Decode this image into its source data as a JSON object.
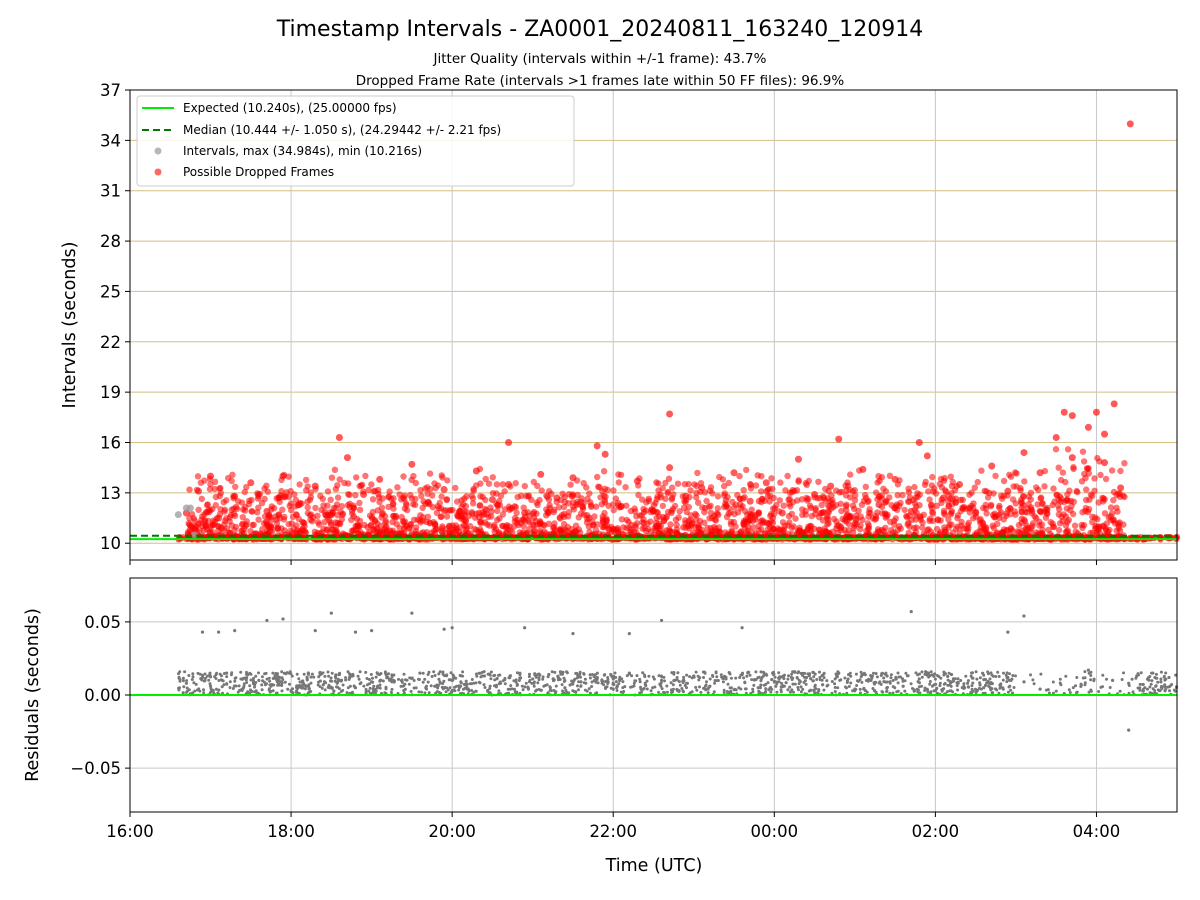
{
  "chart_data": {
    "type": "scatter",
    "title": "Timestamp Intervals - ZA0001_20240811_163240_120914",
    "subtitle_lines": [
      "Jitter Quality (intervals within +/-1 frame): 43.7%",
      "Dropped Frame Rate (intervals >1 frames late within 50 FF files): 96.9%"
    ],
    "xlabel": "Time (UTC)",
    "x_unit": "hours since 16:00 UTC (axis tick labels show clock time)",
    "x_ticks": [
      "16:00",
      "18:00",
      "20:00",
      "22:00",
      "00:00",
      "02:00",
      "04:00"
    ],
    "xlim": [
      16.0,
      29.0
    ],
    "grid": true,
    "legend_position": "top-left",
    "colors": {
      "expected": "#00ee00",
      "median": "#007700",
      "intervals": "#999999",
      "dropped": "#ff0000",
      "residuals": "#777777",
      "upper_grid": "#d4be82",
      "grid": "#c8c8c8"
    },
    "panels": [
      {
        "id": "intervals",
        "ylabel": "Intervals (seconds)",
        "ylim": [
          9.0,
          37.0
        ],
        "y_ticks": [
          "10",
          "13",
          "16",
          "19",
          "22",
          "25",
          "28",
          "31",
          "34",
          "37"
        ],
        "legend": [
          {
            "name": "Expected (10.240s), (25.00000 fps)",
            "style": "line"
          },
          {
            "name": "Median (10.444 +/- 1.050 s), (24.29442 +/- 2.21 fps)",
            "style": "dashed"
          },
          {
            "name": "Intervals, max (34.984s), min (10.216s)",
            "style": "gray-dot"
          },
          {
            "name": "Possible Dropped Frames",
            "style": "red-dot"
          }
        ],
        "expected_interval": 10.24,
        "median_interval": 10.444,
        "max_interval": 34.984,
        "min_interval": 10.216,
        "series": [
          {
            "name": "Possible Dropped Frames",
            "x": [
              16.7,
              16.85,
              17.0,
              17.1,
              17.3,
              17.5,
              17.7,
              17.9,
              18.1,
              18.3,
              18.5,
              18.7,
              18.9,
              19.1,
              19.3,
              19.5,
              19.7,
              19.9,
              20.1,
              20.3,
              20.5,
              20.7,
              20.9,
              21.1,
              21.3,
              21.5,
              21.7,
              21.9,
              22.1,
              22.3,
              22.5,
              22.7,
              22.9,
              23.1,
              23.3,
              23.5,
              23.7,
              23.9,
              24.1,
              24.3,
              24.5,
              24.7,
              24.9,
              25.1,
              25.3,
              25.5,
              25.7,
              25.9,
              26.1,
              26.3,
              26.5,
              26.7,
              26.9,
              27.1,
              27.3,
              27.5,
              27.7,
              27.9,
              28.1,
              28.3,
              18.6,
              20.7,
              21.8,
              22.7,
              24.8,
              25.8,
              27.6,
              27.7,
              28.0,
              28.1,
              28.22,
              28.42
            ],
            "y": [
              11.8,
              13.1,
              14.0,
              11.5,
              12.8,
              13.6,
              11.9,
              14.0,
              12.3,
              13.4,
              11.7,
              15.1,
              12.9,
              13.8,
              11.6,
              14.7,
              12.4,
              13.2,
              11.9,
              14.3,
              12.6,
              13.5,
              11.8,
              14.1,
              12.7,
              13.9,
              11.5,
              15.3,
              12.2,
              13.7,
              11.9,
              14.5,
              12.8,
              13.3,
              11.7,
              14.2,
              12.5,
              13.6,
              11.8,
              15.0,
              12.9,
              13.4,
              11.6,
              14.4,
              12.3,
              13.8,
              11.9,
              15.2,
              12.7,
              13.5,
              11.8,
              14.6,
              13.1,
              15.4,
              14.2,
              16.3,
              15.1,
              16.9,
              14.8,
              13.3,
              16.3,
              16.0,
              15.8,
              17.7,
              16.2,
              16.0,
              17.8,
              17.6,
              17.8,
              16.5,
              18.3,
              34.98
            ]
          },
          {
            "name": "Intervals, max (34.984s), min (10.216s)",
            "x": [
              16.6,
              16.7,
              16.75,
              16.8
            ],
            "y": [
              11.7,
              12.1,
              12.1,
              10.5
            ]
          }
        ]
      },
      {
        "id": "residuals",
        "ylabel": "Residuals (seconds)",
        "ylim": [
          -0.08,
          0.08
        ],
        "y_ticks": [
          "−0.05",
          "0.00",
          "0.05"
        ],
        "series": [
          {
            "name": "Residuals",
            "x": [
              16.7,
              16.9,
              17.0,
              17.2,
              17.4,
              17.6,
              17.8,
              18.0,
              18.2,
              18.4,
              18.6,
              18.8,
              19.0,
              19.2,
              19.4,
              19.6,
              19.8,
              20.0,
              20.2,
              20.4,
              20.6,
              20.8,
              21.0,
              21.2,
              21.4,
              21.6,
              21.8,
              22.0,
              22.2,
              22.4,
              22.6,
              22.8,
              23.0,
              23.2,
              23.4,
              23.6,
              23.8,
              24.0,
              24.2,
              24.4,
              24.6,
              24.8,
              25.0,
              25.2,
              25.4,
              25.6,
              25.8,
              26.0,
              26.2,
              26.4,
              26.6,
              26.9,
              27.1,
              27.3,
              27.6,
              27.9,
              28.2,
              28.4,
              28.5,
              28.6,
              28.7,
              28.8,
              28.9,
              16.9,
              17.1,
              17.3,
              17.7,
              17.9,
              18.3,
              18.5,
              18.8,
              19.0,
              19.5,
              19.9,
              20.0,
              20.9,
              21.5,
              22.2,
              22.6,
              23.6,
              25.7,
              26.9,
              27.1,
              28.4
            ],
            "y": [
              0.008,
              0.012,
              0.006,
              0.015,
              0.004,
              0.01,
              0.013,
              0.003,
              0.011,
              0.007,
              0.014,
              0.005,
              0.009,
              0.012,
              0.003,
              0.015,
              0.006,
              0.01,
              0.004,
              0.013,
              0.008,
              0.002,
              0.011,
              0.014,
              0.005,
              0.009,
              0.012,
              0.004,
              0.015,
              0.007,
              0.01,
              0.003,
              0.013,
              0.006,
              0.011,
              0.014,
              0.005,
              0.009,
              0.002,
              0.012,
              0.007,
              0.015,
              0.004,
              0.01,
              0.013,
              0.006,
              0.011,
              0.003,
              0.014,
              0.008,
              0.005,
              0.012,
              0.009,
              0.004,
              0.001,
              0.017,
              0.01,
              0.008,
              0.013,
              0.005,
              0.015,
              0.009,
              0.012,
              0.043,
              0.043,
              0.044,
              0.051,
              0.052,
              0.044,
              0.056,
              0.043,
              0.044,
              0.056,
              0.045,
              0.046,
              0.046,
              0.042,
              0.042,
              0.051,
              0.046,
              0.057,
              0.043,
              0.054,
              -0.024
            ]
          }
        ]
      }
    ]
  }
}
